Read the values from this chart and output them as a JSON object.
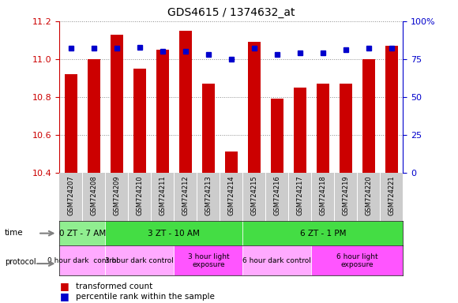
{
  "title": "GDS4615 / 1374632_at",
  "samples": [
    "GSM724207",
    "GSM724208",
    "GSM724209",
    "GSM724210",
    "GSM724211",
    "GSM724212",
    "GSM724213",
    "GSM724214",
    "GSM724215",
    "GSM724216",
    "GSM724217",
    "GSM724218",
    "GSM724219",
    "GSM724220",
    "GSM724221"
  ],
  "red_values": [
    10.92,
    11.0,
    11.13,
    10.95,
    11.05,
    11.15,
    10.87,
    10.51,
    11.09,
    10.79,
    10.85,
    10.87,
    10.87,
    11.0,
    11.07
  ],
  "blue_values": [
    82,
    82,
    82,
    83,
    80,
    80,
    78,
    75,
    82,
    78,
    79,
    79,
    81,
    82,
    82
  ],
  "ylim_left": [
    10.4,
    11.2
  ],
  "ybase": 10.4,
  "ylim_right": [
    0,
    100
  ],
  "yticks_left": [
    10.4,
    10.6,
    10.8,
    11.0,
    11.2
  ],
  "yticks_right": [
    0,
    25,
    50,
    75,
    100
  ],
  "bar_color": "#CC0000",
  "dot_color": "#0000CC",
  "axis_color_left": "#CC0000",
  "axis_color_right": "#0000CC",
  "grid_color": "#888888",
  "time_segs": [
    [
      0,
      1,
      "0 ZT - 7 AM",
      "#90EE90"
    ],
    [
      2,
      7,
      "3 ZT - 10 AM",
      "#44DD44"
    ],
    [
      8,
      14,
      "6 ZT - 1 PM",
      "#44DD44"
    ]
  ],
  "proto_segs": [
    [
      0,
      1,
      "0 hour dark  control",
      "#FFAAFF"
    ],
    [
      2,
      4,
      "3 hour dark control",
      "#FFAAFF"
    ],
    [
      5,
      7,
      "3 hour light\nexposure",
      "#FF55FF"
    ],
    [
      8,
      10,
      "6 hour dark control",
      "#FFAAFF"
    ],
    [
      11,
      14,
      "6 hour light\nexposure",
      "#FF55FF"
    ]
  ]
}
